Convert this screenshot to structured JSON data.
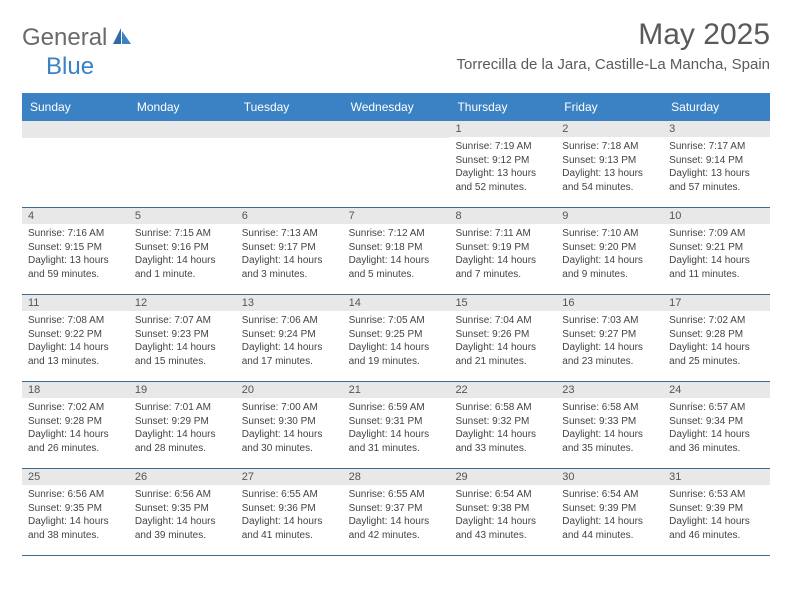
{
  "brand": {
    "general": "General",
    "blue": "Blue"
  },
  "title": "May 2025",
  "location": "Torrecilla de la Jara, Castille-La Mancha, Spain",
  "colors": {
    "header_bg": "#3b82c4",
    "header_text": "#ffffff",
    "rule": "#3b6a94",
    "date_bg": "#e8e8e8",
    "text": "#444444",
    "title_color": "#5a5a5a"
  },
  "weekdays": [
    "Sunday",
    "Monday",
    "Tuesday",
    "Wednesday",
    "Thursday",
    "Friday",
    "Saturday"
  ],
  "weeks": [
    [
      {
        "date": "",
        "sunrise": "",
        "sunset": "",
        "daylight1": "",
        "daylight2": ""
      },
      {
        "date": "",
        "sunrise": "",
        "sunset": "",
        "daylight1": "",
        "daylight2": ""
      },
      {
        "date": "",
        "sunrise": "",
        "sunset": "",
        "daylight1": "",
        "daylight2": ""
      },
      {
        "date": "",
        "sunrise": "",
        "sunset": "",
        "daylight1": "",
        "daylight2": ""
      },
      {
        "date": "1",
        "sunrise": "Sunrise: 7:19 AM",
        "sunset": "Sunset: 9:12 PM",
        "daylight1": "Daylight: 13 hours",
        "daylight2": "and 52 minutes."
      },
      {
        "date": "2",
        "sunrise": "Sunrise: 7:18 AM",
        "sunset": "Sunset: 9:13 PM",
        "daylight1": "Daylight: 13 hours",
        "daylight2": "and 54 minutes."
      },
      {
        "date": "3",
        "sunrise": "Sunrise: 7:17 AM",
        "sunset": "Sunset: 9:14 PM",
        "daylight1": "Daylight: 13 hours",
        "daylight2": "and 57 minutes."
      }
    ],
    [
      {
        "date": "4",
        "sunrise": "Sunrise: 7:16 AM",
        "sunset": "Sunset: 9:15 PM",
        "daylight1": "Daylight: 13 hours",
        "daylight2": "and 59 minutes."
      },
      {
        "date": "5",
        "sunrise": "Sunrise: 7:15 AM",
        "sunset": "Sunset: 9:16 PM",
        "daylight1": "Daylight: 14 hours",
        "daylight2": "and 1 minute."
      },
      {
        "date": "6",
        "sunrise": "Sunrise: 7:13 AM",
        "sunset": "Sunset: 9:17 PM",
        "daylight1": "Daylight: 14 hours",
        "daylight2": "and 3 minutes."
      },
      {
        "date": "7",
        "sunrise": "Sunrise: 7:12 AM",
        "sunset": "Sunset: 9:18 PM",
        "daylight1": "Daylight: 14 hours",
        "daylight2": "and 5 minutes."
      },
      {
        "date": "8",
        "sunrise": "Sunrise: 7:11 AM",
        "sunset": "Sunset: 9:19 PM",
        "daylight1": "Daylight: 14 hours",
        "daylight2": "and 7 minutes."
      },
      {
        "date": "9",
        "sunrise": "Sunrise: 7:10 AM",
        "sunset": "Sunset: 9:20 PM",
        "daylight1": "Daylight: 14 hours",
        "daylight2": "and 9 minutes."
      },
      {
        "date": "10",
        "sunrise": "Sunrise: 7:09 AM",
        "sunset": "Sunset: 9:21 PM",
        "daylight1": "Daylight: 14 hours",
        "daylight2": "and 11 minutes."
      }
    ],
    [
      {
        "date": "11",
        "sunrise": "Sunrise: 7:08 AM",
        "sunset": "Sunset: 9:22 PM",
        "daylight1": "Daylight: 14 hours",
        "daylight2": "and 13 minutes."
      },
      {
        "date": "12",
        "sunrise": "Sunrise: 7:07 AM",
        "sunset": "Sunset: 9:23 PM",
        "daylight1": "Daylight: 14 hours",
        "daylight2": "and 15 minutes."
      },
      {
        "date": "13",
        "sunrise": "Sunrise: 7:06 AM",
        "sunset": "Sunset: 9:24 PM",
        "daylight1": "Daylight: 14 hours",
        "daylight2": "and 17 minutes."
      },
      {
        "date": "14",
        "sunrise": "Sunrise: 7:05 AM",
        "sunset": "Sunset: 9:25 PM",
        "daylight1": "Daylight: 14 hours",
        "daylight2": "and 19 minutes."
      },
      {
        "date": "15",
        "sunrise": "Sunrise: 7:04 AM",
        "sunset": "Sunset: 9:26 PM",
        "daylight1": "Daylight: 14 hours",
        "daylight2": "and 21 minutes."
      },
      {
        "date": "16",
        "sunrise": "Sunrise: 7:03 AM",
        "sunset": "Sunset: 9:27 PM",
        "daylight1": "Daylight: 14 hours",
        "daylight2": "and 23 minutes."
      },
      {
        "date": "17",
        "sunrise": "Sunrise: 7:02 AM",
        "sunset": "Sunset: 9:28 PM",
        "daylight1": "Daylight: 14 hours",
        "daylight2": "and 25 minutes."
      }
    ],
    [
      {
        "date": "18",
        "sunrise": "Sunrise: 7:02 AM",
        "sunset": "Sunset: 9:28 PM",
        "daylight1": "Daylight: 14 hours",
        "daylight2": "and 26 minutes."
      },
      {
        "date": "19",
        "sunrise": "Sunrise: 7:01 AM",
        "sunset": "Sunset: 9:29 PM",
        "daylight1": "Daylight: 14 hours",
        "daylight2": "and 28 minutes."
      },
      {
        "date": "20",
        "sunrise": "Sunrise: 7:00 AM",
        "sunset": "Sunset: 9:30 PM",
        "daylight1": "Daylight: 14 hours",
        "daylight2": "and 30 minutes."
      },
      {
        "date": "21",
        "sunrise": "Sunrise: 6:59 AM",
        "sunset": "Sunset: 9:31 PM",
        "daylight1": "Daylight: 14 hours",
        "daylight2": "and 31 minutes."
      },
      {
        "date": "22",
        "sunrise": "Sunrise: 6:58 AM",
        "sunset": "Sunset: 9:32 PM",
        "daylight1": "Daylight: 14 hours",
        "daylight2": "and 33 minutes."
      },
      {
        "date": "23",
        "sunrise": "Sunrise: 6:58 AM",
        "sunset": "Sunset: 9:33 PM",
        "daylight1": "Daylight: 14 hours",
        "daylight2": "and 35 minutes."
      },
      {
        "date": "24",
        "sunrise": "Sunrise: 6:57 AM",
        "sunset": "Sunset: 9:34 PM",
        "daylight1": "Daylight: 14 hours",
        "daylight2": "and 36 minutes."
      }
    ],
    [
      {
        "date": "25",
        "sunrise": "Sunrise: 6:56 AM",
        "sunset": "Sunset: 9:35 PM",
        "daylight1": "Daylight: 14 hours",
        "daylight2": "and 38 minutes."
      },
      {
        "date": "26",
        "sunrise": "Sunrise: 6:56 AM",
        "sunset": "Sunset: 9:35 PM",
        "daylight1": "Daylight: 14 hours",
        "daylight2": "and 39 minutes."
      },
      {
        "date": "27",
        "sunrise": "Sunrise: 6:55 AM",
        "sunset": "Sunset: 9:36 PM",
        "daylight1": "Daylight: 14 hours",
        "daylight2": "and 41 minutes."
      },
      {
        "date": "28",
        "sunrise": "Sunrise: 6:55 AM",
        "sunset": "Sunset: 9:37 PM",
        "daylight1": "Daylight: 14 hours",
        "daylight2": "and 42 minutes."
      },
      {
        "date": "29",
        "sunrise": "Sunrise: 6:54 AM",
        "sunset": "Sunset: 9:38 PM",
        "daylight1": "Daylight: 14 hours",
        "daylight2": "and 43 minutes."
      },
      {
        "date": "30",
        "sunrise": "Sunrise: 6:54 AM",
        "sunset": "Sunset: 9:39 PM",
        "daylight1": "Daylight: 14 hours",
        "daylight2": "and 44 minutes."
      },
      {
        "date": "31",
        "sunrise": "Sunrise: 6:53 AM",
        "sunset": "Sunset: 9:39 PM",
        "daylight1": "Daylight: 14 hours",
        "daylight2": "and 46 minutes."
      }
    ]
  ]
}
